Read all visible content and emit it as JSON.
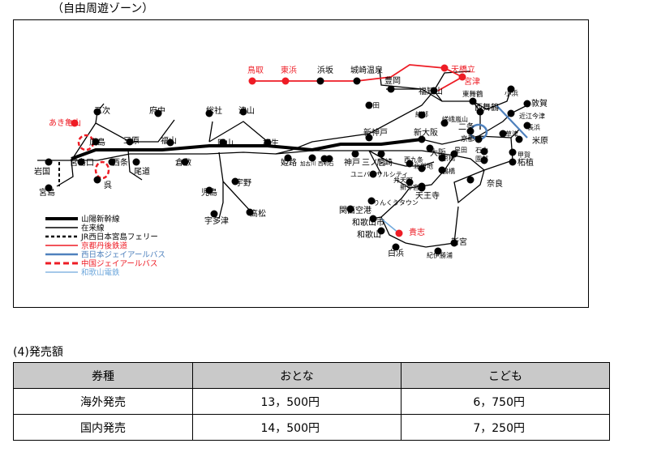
{
  "zone_title": "（自由周遊ゾーン）",
  "section_heading": "(4)発売額",
  "colors": {
    "jr_red": "#ee1c25",
    "bus_blue": "#4f81bd",
    "wakayama": "#6fa8dc"
  },
  "legend": [
    {
      "label": "山陽新幹線",
      "style": "shinkansen",
      "color": "#000000"
    },
    {
      "label": "在来線",
      "style": "conventional",
      "color": "#000000"
    },
    {
      "label": "JR西日本宮島フェリー",
      "style": "ferry",
      "color": "#000000"
    },
    {
      "label": "京都丹後鉄道",
      "style": "red-line",
      "color": "#ee1c25"
    },
    {
      "label": "西日本ジェイアールバス",
      "style": "blue-line",
      "color": "#4f81bd"
    },
    {
      "label": "中国ジェイアールバス",
      "style": "red-dashed",
      "color": "#ee1c25"
    },
    {
      "label": "和歌山電鉄",
      "style": "lightblue-line",
      "color": "#6fa8dc"
    }
  ],
  "stations": {
    "tottori": "鳥取",
    "higashihama": "東浜",
    "hamasaka": "浜坂",
    "kinosaki": "城崎温泉",
    "toyooka": "豊岡",
    "amanohashidate": "天橋立",
    "miyazu": "宮津",
    "fukuchiyama": "福知山",
    "higashimaizuru": "東舞鶴",
    "nishimaizuru": "西舞鶴",
    "obama": "小浜",
    "tsuruga": "敦賀",
    "takeda": "竹田",
    "ayabe": "綾部",
    "sagano": "嵯峨嵐山",
    "nijo": "二条",
    "omiimazu": "近江今津",
    "nagahama": "長浜",
    "maibara": "米原",
    "kusatsu": "草津",
    "kyoto": "京都",
    "sonobe": "園部",
    "kozuka": "甲賀",
    "tsuge": "柘植",
    "ishiyama": "石山",
    "akikameyama": "あき亀山",
    "miyoshi": "三次",
    "fuchu": "府中",
    "soja": "総社",
    "tsuyama": "津山",
    "hiroshima": "広島",
    "mihara": "三原",
    "fukuyama": "福山",
    "okayama": "岡山",
    "aioi": "相生",
    "shinkobe": "新神戸",
    "shinosaka": "新大阪",
    "iwakuni": "岩国",
    "miyajimaguchi": "宮島口",
    "saijo": "西条",
    "onomichi": "尾道",
    "kurashiki": "倉敷",
    "himeji": "姫路",
    "kobe": "神戸",
    "sannomiya": "三ノ宮",
    "amagasaki": "尼崎",
    "osaka": "大阪",
    "miyajima": "宮島",
    "kure": "呉",
    "kojima": "児島",
    "uno": "宇野",
    "utazu": "宇多津",
    "takamatsu": "高松",
    "nara": "奈良",
    "tennoji": "天王寺",
    "kansai_airport": "関西空港",
    "rinku": "りんくうタウン",
    "wakayamashi": "和歌山市",
    "wakayama": "和歌山",
    "kishi": "貴志",
    "shirahama": "白浜",
    "shingu": "新宮",
    "kiiKatsuura": "紀伊勝浦",
    "usj": "ユニバーサルシティ",
    "nishikujo": "西九条",
    "bentencho": "弁天町",
    "shinimamiya": "新今宮",
    "kyobashi": "京橋",
    "tsuruhashi": "鶴橋",
    "kitashinchi": "北新地",
    "hoshida": "星田",
    "kakogawa": "加古川",
    "nishiakashi": "西明石"
  },
  "fare_table": {
    "headers": [
      "券種",
      "おとな",
      "こども"
    ],
    "rows": [
      {
        "type": "海外発売",
        "adult": "13，500円",
        "child": "6，750円"
      },
      {
        "type": "国内発売",
        "adult": "14，500円",
        "child": "7，250円"
      }
    ]
  }
}
